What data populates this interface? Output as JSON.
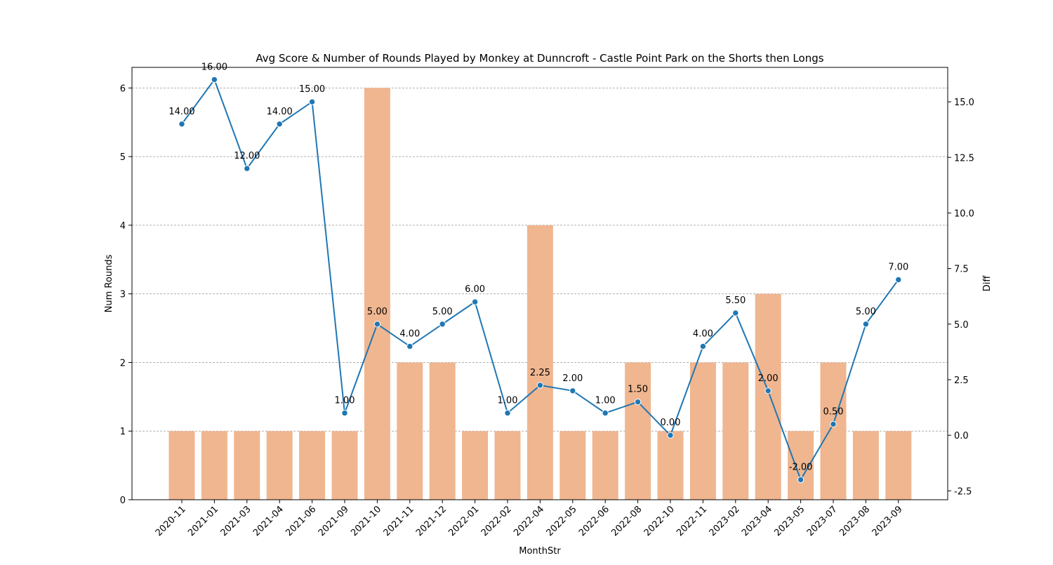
{
  "chart_data": {
    "type": "bar",
    "title": "Avg Score & Number of Rounds Played by Monkey at Dunncroft - Castle Point Park on the Shorts then Longs",
    "xlabel": "MonthStr",
    "ylabel_left": "Num Rounds",
    "ylabel_right": "Diff",
    "categories": [
      "2020-11",
      "2021-01",
      "2021-03",
      "2021-04",
      "2021-06",
      "2021-09",
      "2021-10",
      "2021-11",
      "2021-12",
      "2022-01",
      "2022-02",
      "2022-04",
      "2022-05",
      "2022-06",
      "2022-08",
      "2022-10",
      "2022-11",
      "2023-02",
      "2023-04",
      "2023-05",
      "2023-07",
      "2023-08",
      "2023-09"
    ],
    "series": [
      {
        "type": "bar",
        "axis": "left",
        "values": [
          1,
          1,
          1,
          1,
          1,
          1,
          6,
          2,
          2,
          1,
          1,
          4,
          1,
          1,
          2,
          1,
          2,
          2,
          3,
          1,
          2,
          1,
          1
        ]
      },
      {
        "type": "line",
        "axis": "right",
        "values": [
          14,
          16,
          12,
          14,
          15,
          1,
          5,
          4,
          5,
          6,
          1,
          2.25,
          2,
          1,
          1.5,
          0,
          4,
          5.5,
          2,
          -2,
          0.5,
          5,
          7
        ]
      }
    ],
    "data_labels": [
      "14.00",
      "16.00",
      "12.00",
      "14.00",
      "15.00",
      "1.00",
      "5.00",
      "4.00",
      "5.00",
      "6.00",
      "1.00",
      "2.25",
      "2.00",
      "1.00",
      "1.50",
      "0.00",
      "4.00",
      "5.50",
      "2.00",
      "-2.00",
      "0.50",
      "5.00",
      "7.00"
    ],
    "ylim_left": [
      0,
      6.3
    ],
    "ylim_right": [
      -2.9,
      16.55
    ],
    "yticks_left": [
      "0",
      "1",
      "2",
      "3",
      "4",
      "5",
      "6"
    ],
    "yticks_right": [
      "-2.5",
      "0.0",
      "2.5",
      "5.0",
      "7.5",
      "10.0",
      "12.5",
      "15.0"
    ],
    "grid": "horizontal dashed, left axis",
    "colors": {
      "bar": "#f0b690",
      "line": "#1f77b4",
      "grid": "#b0b0b0",
      "axis": "#000000"
    }
  }
}
